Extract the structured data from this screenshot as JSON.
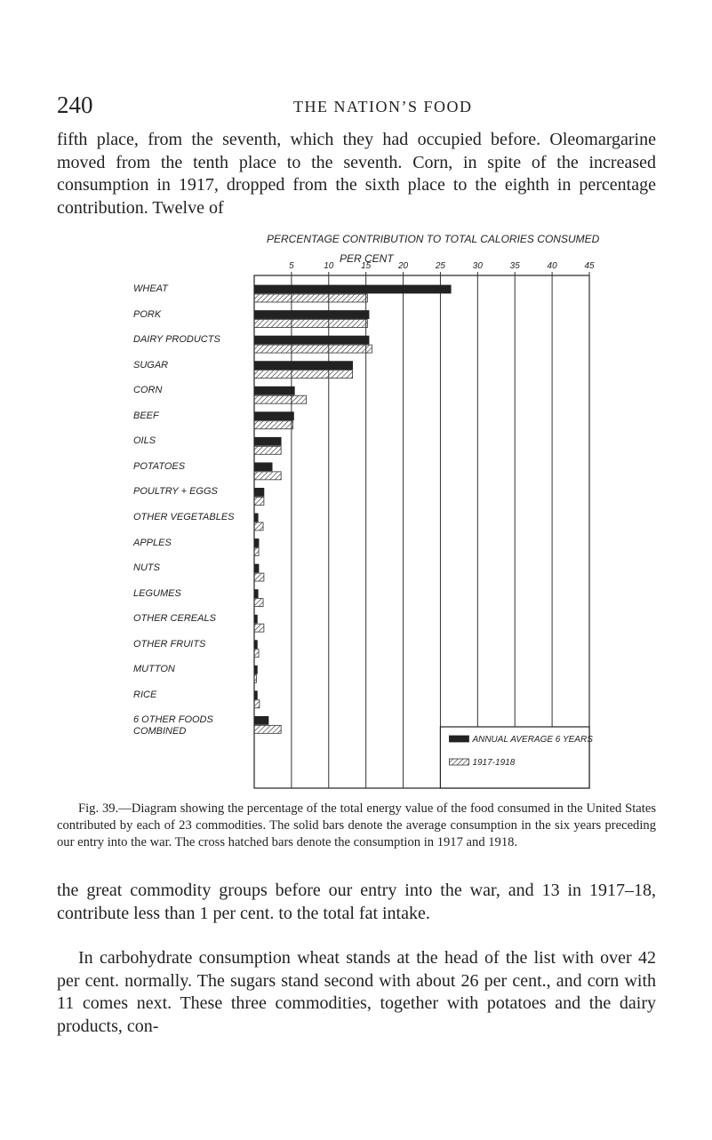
{
  "header": {
    "page_number": "240",
    "running_title": "THE NATION’S FOOD"
  },
  "text_before": "fifth place, from the seventh, which they had occupied before. Oleomargarine moved from the tenth place to the seventh. Corn, in spite of the increased consumption in 1917, dropped from the sixth place to the eighth in percentage contribution. Twelve of",
  "chart_data": {
    "type": "bar",
    "orientation": "horizontal",
    "title": "PERCENTAGE CONTRIBUTION TO TOTAL CALORIES CONSUMED",
    "subtitle": "PER CENT",
    "categories": [
      "WHEAT",
      "PORK",
      "DAIRY PRODUCTS",
      "SUGAR",
      "CORN",
      "BEEF",
      "OILS",
      "POTATOES",
      "POULTRY + EGGS",
      "OTHER VEGETABLES",
      "APPLES",
      "NUTS",
      "LEGUMES",
      "OTHER CEREALS",
      "OTHER FRUITS",
      "MUTTON",
      "RICE",
      "6 OTHER FOODS COMBINED"
    ],
    "series": [
      {
        "name": "ANNUAL AVERAGE 6 YEARS",
        "color": "#222222",
        "pattern": "solid",
        "values": [
          26.4,
          15.4,
          15.4,
          13.2,
          5.4,
          5.3,
          3.6,
          2.4,
          1.3,
          0.5,
          0.6,
          0.6,
          0.5,
          0.4,
          0.4,
          0.4,
          0.4,
          1.9
        ]
      },
      {
        "name": "1917-1918",
        "color": "#333333",
        "pattern": "hatch",
        "values": [
          15.2,
          15.2,
          15.8,
          13.2,
          7.0,
          5.2,
          3.6,
          3.6,
          1.3,
          1.2,
          0.6,
          1.3,
          1.2,
          1.3,
          0.6,
          0.3,
          0.7,
          3.6
        ]
      }
    ],
    "xlim": [
      0,
      45
    ],
    "xticks": [
      5,
      10,
      15,
      20,
      25,
      30,
      35,
      40,
      45
    ],
    "grid": true,
    "legend": "lower right"
  },
  "caption": "Fig. 39.—Diagram showing the percentage of the total energy value of the food consumed in the United States contributed by each of 23 commodities. The solid bars denote the average consumption in the six years preceding our entry into the war. The cross hatched bars denote the consumption in 1917 and 1918.",
  "text_after": [
    "the great commodity groups before our entry into the war, and 13 in 1917–18, contribute less than 1 per cent. to the total fat intake.",
    "In carbohydrate consumption wheat stands at the head of the list with over 42 per cent. normally. The sugars stand second with about 26 per cent., and corn with 11 comes next. These three commodities, together with potatoes and the dairy products, con-"
  ]
}
